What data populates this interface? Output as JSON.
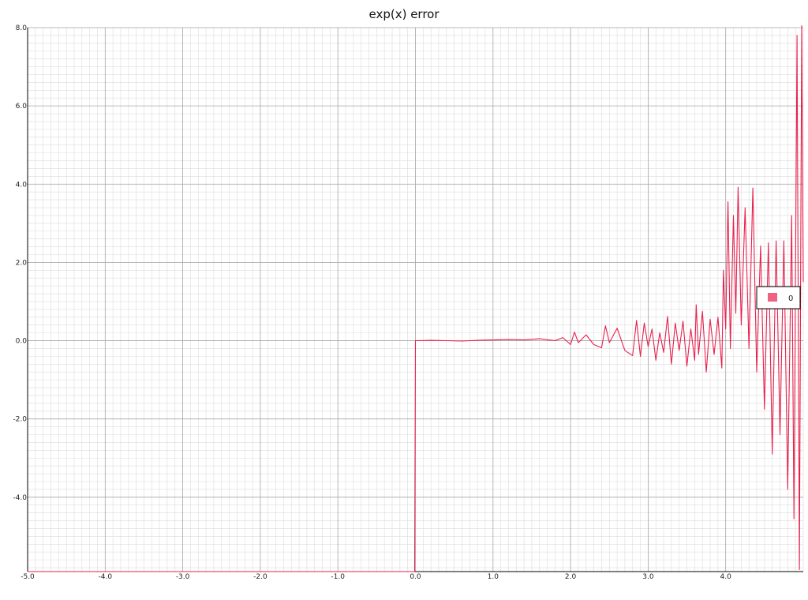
{
  "chart_data": {
    "type": "line",
    "title": "exp(x) error",
    "xlabel": "",
    "ylabel": "",
    "xlim": [
      -5.0,
      5.0
    ],
    "ylim": [
      -5.9,
      8.0
    ],
    "grid": true,
    "minor_grid": true,
    "legend_position": "right",
    "x_ticks": [
      "-5.0",
      "-4.0",
      "-3.0",
      "-2.0",
      "-1.0",
      "0.0",
      "1.0",
      "2.0",
      "3.0",
      "4.0"
    ],
    "y_ticks": [
      "-4.0",
      "-2.0",
      "0.0",
      "2.0",
      "4.0",
      "6.0",
      "8.0"
    ],
    "series": [
      {
        "name": "0",
        "color": "#e8204c",
        "points": [
          [
            -5.0,
            -5.9
          ],
          [
            -0.01,
            -5.9
          ],
          [
            0.0,
            0.0
          ],
          [
            0.2,
            0.01
          ],
          [
            0.4,
            0.0
          ],
          [
            0.6,
            -0.01
          ],
          [
            0.8,
            0.01
          ],
          [
            1.0,
            0.02
          ],
          [
            1.2,
            0.03
          ],
          [
            1.4,
            0.02
          ],
          [
            1.6,
            0.05
          ],
          [
            1.8,
            0.0
          ],
          [
            1.9,
            0.08
          ],
          [
            2.0,
            -0.1
          ],
          [
            2.05,
            0.22
          ],
          [
            2.1,
            -0.05
          ],
          [
            2.2,
            0.15
          ],
          [
            2.3,
            -0.1
          ],
          [
            2.4,
            -0.18
          ],
          [
            2.45,
            0.38
          ],
          [
            2.5,
            -0.05
          ],
          [
            2.6,
            0.32
          ],
          [
            2.7,
            -0.25
          ],
          [
            2.8,
            -0.38
          ],
          [
            2.85,
            0.52
          ],
          [
            2.9,
            -0.4
          ],
          [
            2.95,
            0.45
          ],
          [
            3.0,
            -0.15
          ],
          [
            3.05,
            0.3
          ],
          [
            3.1,
            -0.5
          ],
          [
            3.15,
            0.2
          ],
          [
            3.2,
            -0.3
          ],
          [
            3.25,
            0.62
          ],
          [
            3.3,
            -0.6
          ],
          [
            3.35,
            0.45
          ],
          [
            3.4,
            -0.25
          ],
          [
            3.45,
            0.5
          ],
          [
            3.5,
            -0.65
          ],
          [
            3.55,
            0.3
          ],
          [
            3.6,
            -0.5
          ],
          [
            3.62,
            0.92
          ],
          [
            3.65,
            -0.35
          ],
          [
            3.7,
            0.75
          ],
          [
            3.75,
            -0.8
          ],
          [
            3.8,
            0.55
          ],
          [
            3.85,
            -0.35
          ],
          [
            3.9,
            0.6
          ],
          [
            3.95,
            -0.7
          ],
          [
            3.97,
            1.8
          ],
          [
            4.0,
            0.3
          ],
          [
            4.03,
            3.55
          ],
          [
            4.06,
            -0.2
          ],
          [
            4.1,
            3.2
          ],
          [
            4.13,
            0.7
          ],
          [
            4.16,
            3.92
          ],
          [
            4.2,
            0.4
          ],
          [
            4.25,
            3.4
          ],
          [
            4.3,
            -0.2
          ],
          [
            4.35,
            3.9
          ],
          [
            4.4,
            -0.8
          ],
          [
            4.45,
            2.42
          ],
          [
            4.5,
            -1.75
          ],
          [
            4.55,
            2.5
          ],
          [
            4.6,
            -2.9
          ],
          [
            4.65,
            2.55
          ],
          [
            4.7,
            -2.4
          ],
          [
            4.75,
            2.55
          ],
          [
            4.8,
            -3.8
          ],
          [
            4.85,
            3.2
          ],
          [
            4.88,
            -4.55
          ],
          [
            4.92,
            7.8
          ],
          [
            4.95,
            -5.85
          ],
          [
            4.98,
            8.05
          ],
          [
            5.0,
            1.5
          ]
        ]
      }
    ]
  }
}
